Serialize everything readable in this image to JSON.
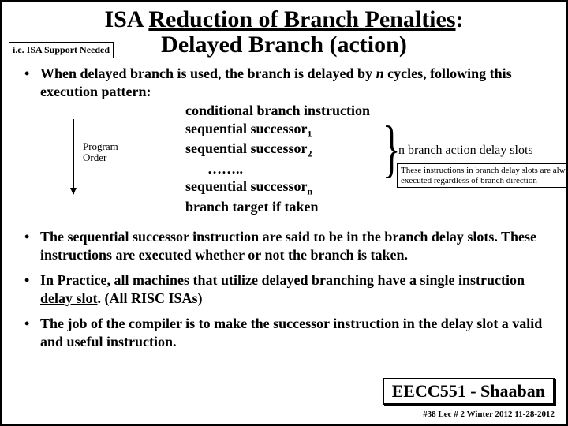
{
  "title": {
    "line1_pre": "ISA ",
    "line1_under": "Reduction of Branch Penalties",
    "line1_post": ":",
    "line2": "Delayed Branch (action)"
  },
  "note_box": "i.e. ISA Support Needed",
  "bullet1": {
    "pre": "When delayed branch is used,  the branch is delayed by  ",
    "var": "n",
    "post": "  cycles, following this execution pattern:"
  },
  "program_order": {
    "l1": "Program",
    "l2": "Order"
  },
  "instructions": {
    "i0": "conditional branch instruction",
    "i1_pre": "sequential successor",
    "i1_sub": "1",
    "i2_pre": "sequential successor",
    "i2_sub": "2",
    "dots": "……..",
    "in_pre": "sequential successor",
    "in_sub": "n",
    "target": "branch target if taken"
  },
  "brace_label": "n branch action delay slots",
  "brace_note": "These instructions in branch delay slots are always executed regardless of branch direction",
  "bullet2": "The sequential successor instruction are said to be  in the branch delay slots.   These instructions are executed whether or not the branch is taken.",
  "bullet3": {
    "pre": "In Practice, all machines that utilize delayed branching have ",
    "under": "a single instruction delay slot",
    "post": ".  (All RISC ISAs)"
  },
  "bullet4": "The job of the compiler is to make the successor instruction  in the delay slot a valid  and useful instruction.",
  "footer": {
    "course": "EECC551 - Shaaban",
    "meta": "#38   Lec # 2   Winter 2012   11-28-2012"
  }
}
